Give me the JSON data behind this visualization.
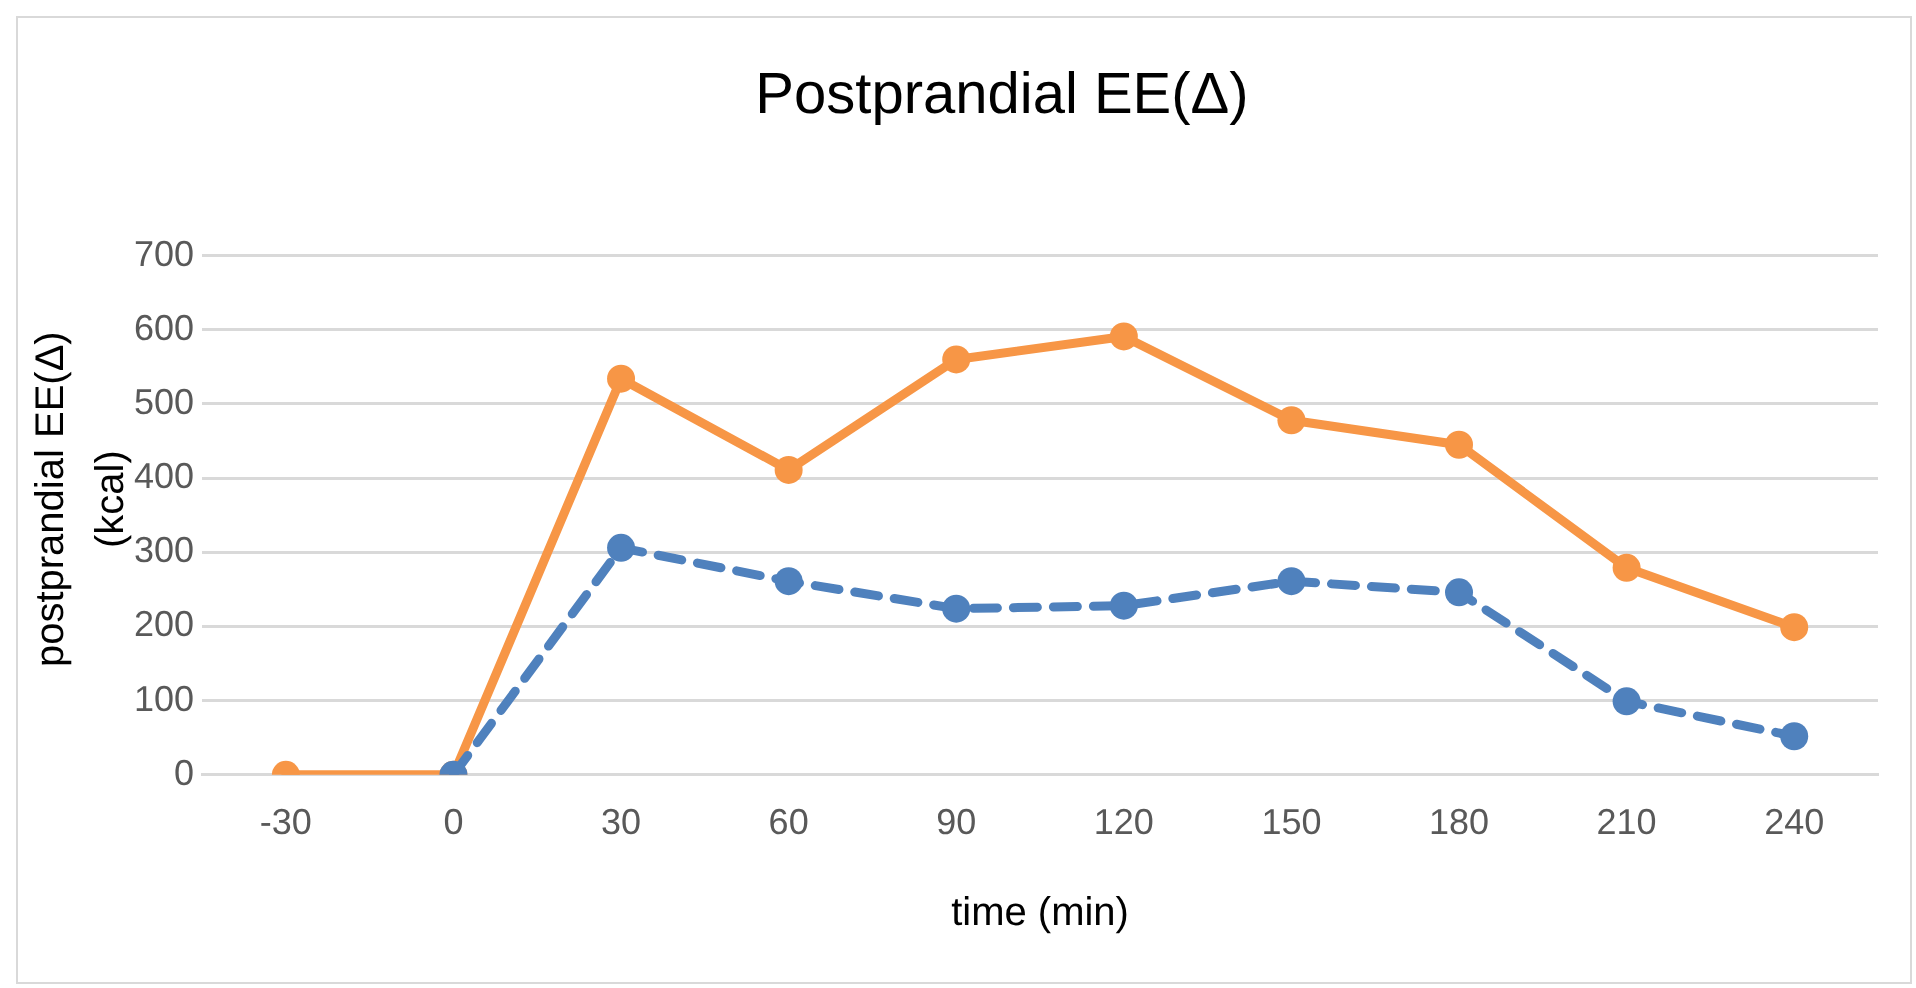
{
  "chart_data": {
    "type": "line",
    "title": "Postprandial EE(Δ)",
    "xlabel": "time (min)",
    "ylabel": "postprandial EE(Δ) (kcal)",
    "categories": [
      "-30",
      "0",
      "30",
      "60",
      "90",
      "120",
      "150",
      "180",
      "210",
      "240"
    ],
    "series": [
      {
        "color": "#4f81bd",
        "line_style": "dashed",
        "values": [
          null,
          0,
          306,
          261,
          224,
          228,
          261,
          246,
          99,
          52
        ]
      },
      {
        "color": "#f79646",
        "line_style": "solid",
        "values": [
          0,
          0,
          534,
          411,
          560,
          591,
          478,
          445,
          279,
          199
        ]
      }
    ],
    "ylim": [
      0,
      700
    ],
    "yticks": [
      0,
      100,
      200,
      300,
      400,
      500,
      600,
      700
    ],
    "grid": "y",
    "legend": false,
    "marker": "circle"
  }
}
